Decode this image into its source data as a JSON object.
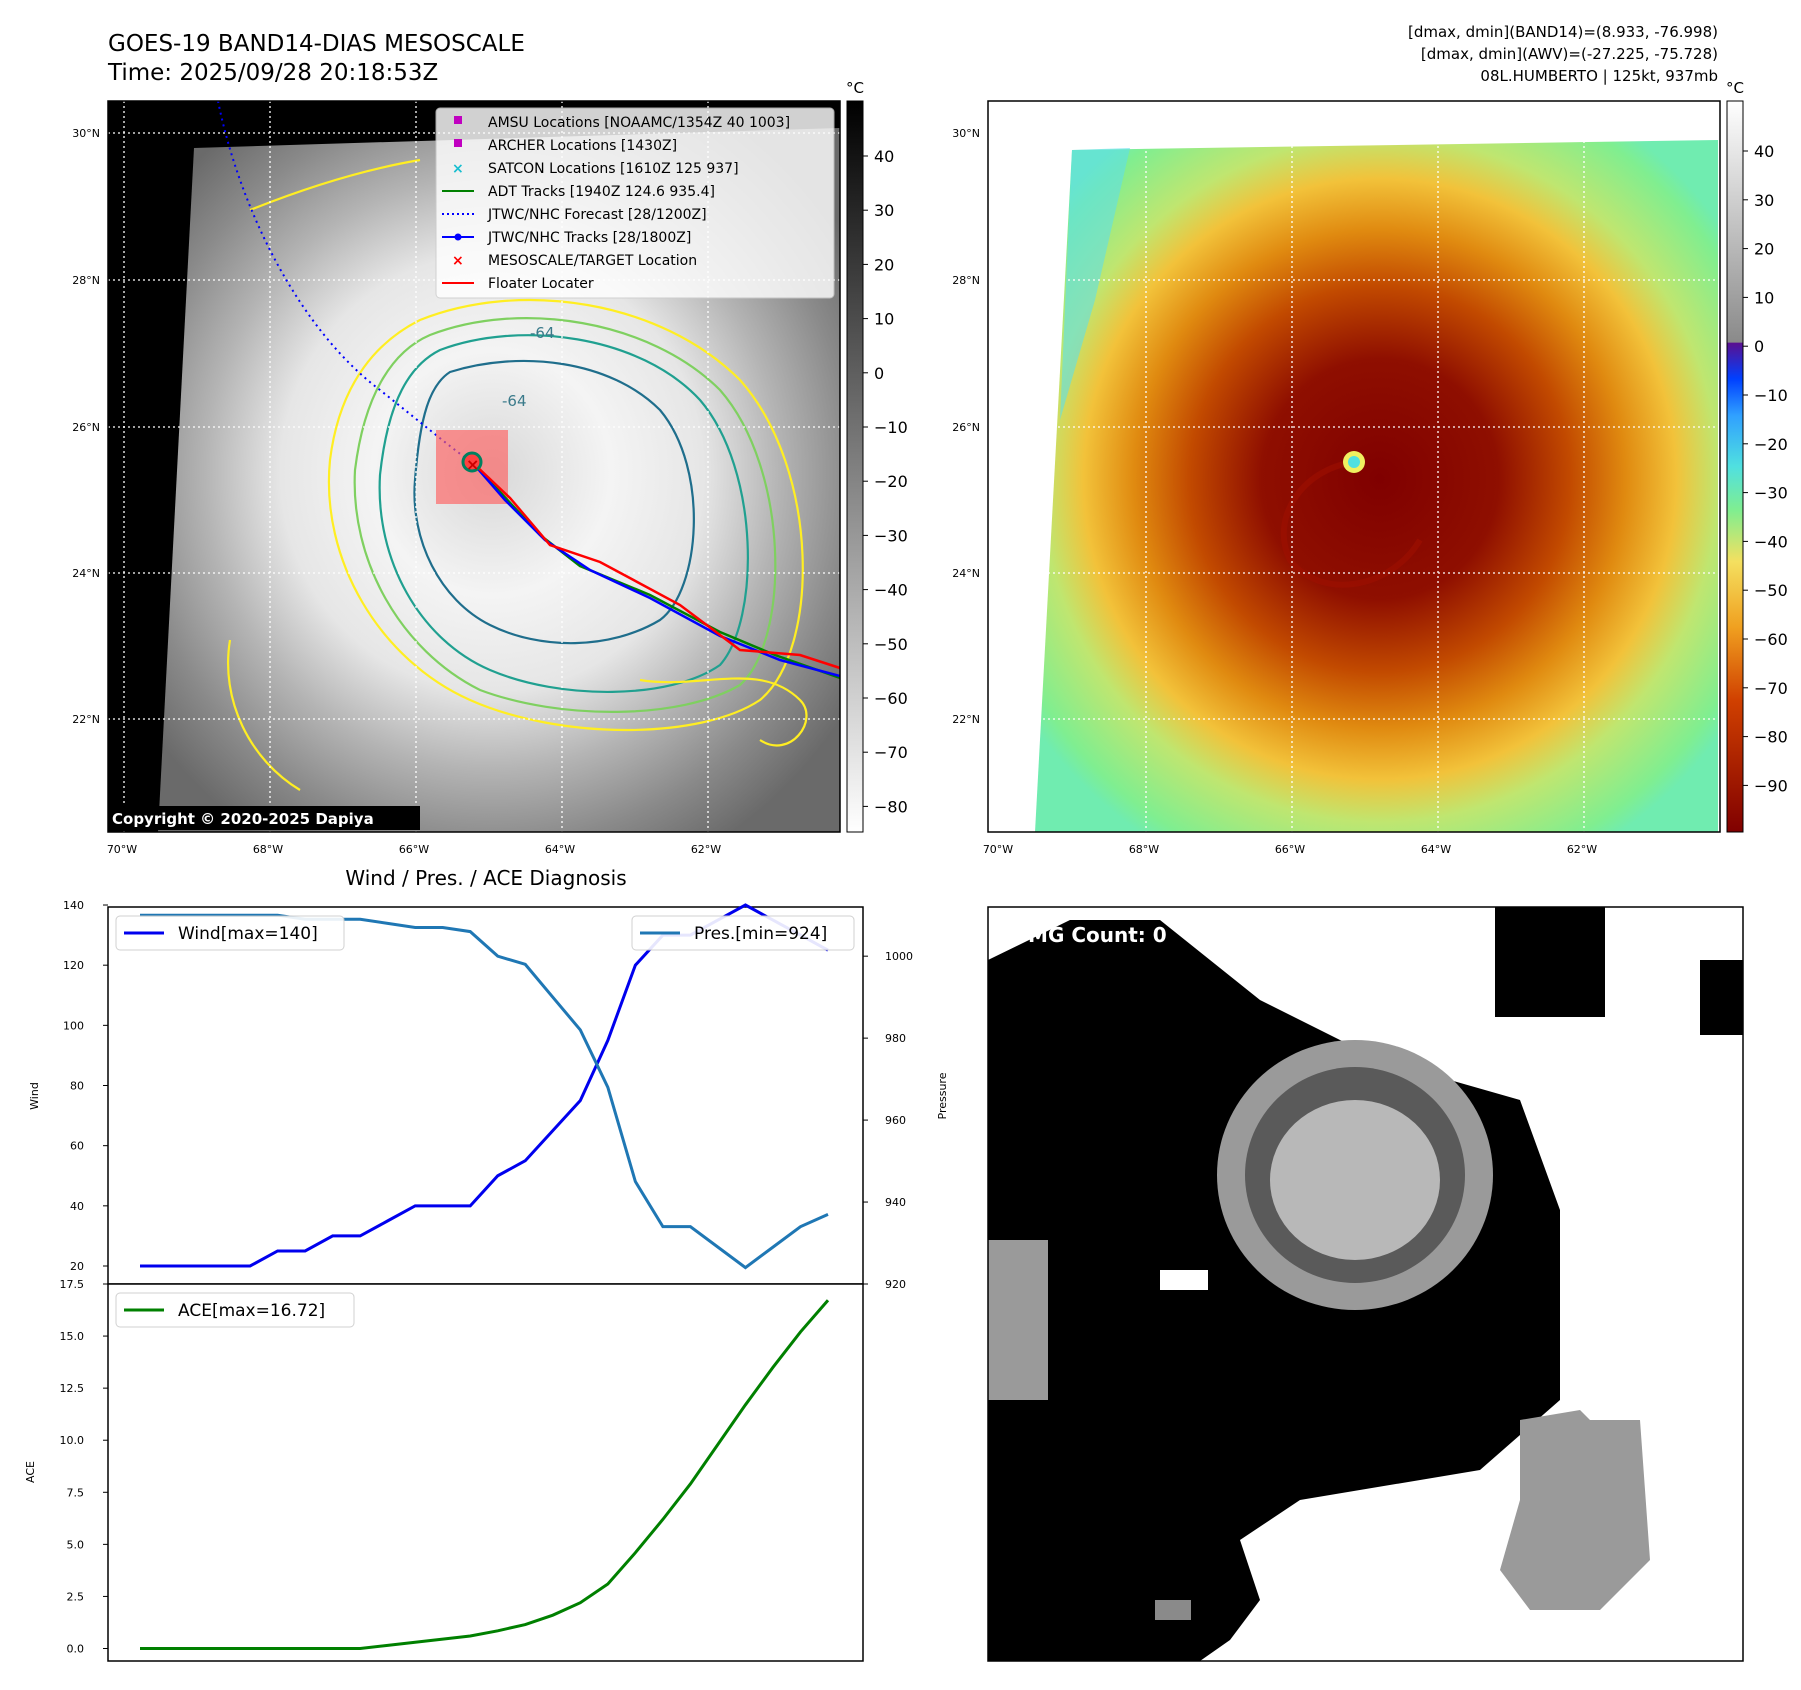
{
  "header": {
    "title": "GOES-19 BAND14-DIAS MESOSCALE",
    "time": "Time: 2025/09/28 20:18:53Z",
    "dmax_band14": "[dmax, dmin](BAND14)=(8.933, -76.998)",
    "dmax_awv": "[dmax, dmin](AWV)=(-27.225, -75.728)",
    "storm": "08L.HUMBERTO | 125kt, 937mb"
  },
  "map": {
    "lat_labels": [
      "30°N",
      "28°N",
      "26°N",
      "24°N",
      "22°N"
    ],
    "lon_labels": [
      "70°W",
      "68°W",
      "66°W",
      "64°W",
      "62°W"
    ],
    "copyright": "Copyright © 2020-2025 Dapiya",
    "contour_labels": [
      "-64",
      "-64"
    ],
    "cbar_unit": "°C",
    "cbar_ticks": [
      "40",
      "30",
      "20",
      "10",
      "0",
      "−10",
      "−20",
      "−30",
      "−40",
      "−50",
      "−60",
      "−70",
      "−80"
    ],
    "legend": [
      {
        "label": "AMSU Locations [NOAAMC/1354Z 40 1003]",
        "marker": "square",
        "color": "#c000c0"
      },
      {
        "label": "ARCHER Locations [1430Z]",
        "marker": "square",
        "color": "#c000c0"
      },
      {
        "label": "SATCON Locations [1610Z 125 937]",
        "marker": "x",
        "color": "#17becf"
      },
      {
        "label": "ADT Tracks [1940Z 124.6 935.4]",
        "marker": "line",
        "color": "#008000"
      },
      {
        "label": "JTWC/NHC Forecast [28/1200Z]",
        "marker": "dotted",
        "color": "#0000ff"
      },
      {
        "label": "JTWC/NHC Tracks [28/1800Z]",
        "marker": "line-dot",
        "color": "#0000ff"
      },
      {
        "label": "MESOSCALE/TARGET Location",
        "marker": "x",
        "color": "#ff0000"
      },
      {
        "label": "Floater Locater",
        "marker": "line",
        "color": "#ff0000"
      }
    ]
  },
  "awv": {
    "cbar_unit": "°C",
    "cbar_ticks": [
      "40",
      "30",
      "20",
      "10",
      "0",
      "−10",
      "−20",
      "−30",
      "−40",
      "−50",
      "−60",
      "−70",
      "−80",
      "−90"
    ]
  },
  "wmg": {
    "count_label": "WMG Count: 0"
  },
  "chart_data": [
    {
      "type": "line",
      "title": "Wind / Pres. / ACE Diagnosis",
      "xlabel": "",
      "ylabel": "Wind",
      "ylabel_right": "Pressure",
      "ylim": [
        20,
        142
      ],
      "ylim_right": [
        920,
        1012
      ],
      "yticks": [
        20,
        40,
        60,
        80,
        100,
        120,
        140
      ],
      "yticks_right": [
        920,
        940,
        960,
        980,
        1000
      ],
      "x": [
        0,
        1,
        2,
        3,
        4,
        5,
        6,
        7,
        8,
        9,
        10,
        11,
        12,
        13,
        14,
        15,
        16,
        17,
        18,
        19,
        20,
        21,
        22,
        23,
        24,
        25
      ],
      "series": [
        {
          "name": "Wind[max=140]",
          "axis": "left",
          "color": "#0000ee",
          "values": [
            20,
            20,
            20,
            20,
            20,
            25,
            25,
            30,
            30,
            35,
            40,
            40,
            40,
            50,
            55,
            65,
            75,
            95,
            120,
            130,
            130,
            135,
            140,
            135,
            130,
            125
          ]
        },
        {
          "name": "Pres.[min=924]",
          "axis": "right",
          "color": "#1f77b4",
          "values": [
            1010,
            1010,
            1010,
            1010,
            1010,
            1010,
            1009,
            1009,
            1009,
            1008,
            1007,
            1007,
            1006,
            1000,
            998,
            990,
            982,
            968,
            945,
            934,
            934,
            929,
            924,
            929,
            934,
            937
          ]
        }
      ]
    },
    {
      "type": "line",
      "title": "",
      "xlabel": "",
      "ylabel": "ACE",
      "ylim": [
        -0.6,
        17.5
      ],
      "yticks": [
        0.0,
        2.5,
        5.0,
        7.5,
        10.0,
        12.5,
        15.0,
        17.5
      ],
      "ytick_labels": [
        "0.0",
        "2.5",
        "5.0",
        "7.5",
        "10.0",
        "12.5",
        "15.0",
        "17.5"
      ],
      "x": [
        0,
        1,
        2,
        3,
        4,
        5,
        6,
        7,
        8,
        9,
        10,
        11,
        12,
        13,
        14,
        15,
        16,
        17,
        18,
        19,
        20,
        21,
        22,
        23,
        24,
        25
      ],
      "series": [
        {
          "name": "ACE[max=16.72]",
          "color": "#008000",
          "values": [
            0,
            0,
            0,
            0,
            0,
            0,
            0,
            0,
            0,
            0.15,
            0.3,
            0.45,
            0.6,
            0.85,
            1.15,
            1.6,
            2.2,
            3.1,
            4.6,
            6.2,
            7.9,
            9.8,
            11.7,
            13.5,
            15.2,
            16.72
          ]
        }
      ]
    }
  ]
}
